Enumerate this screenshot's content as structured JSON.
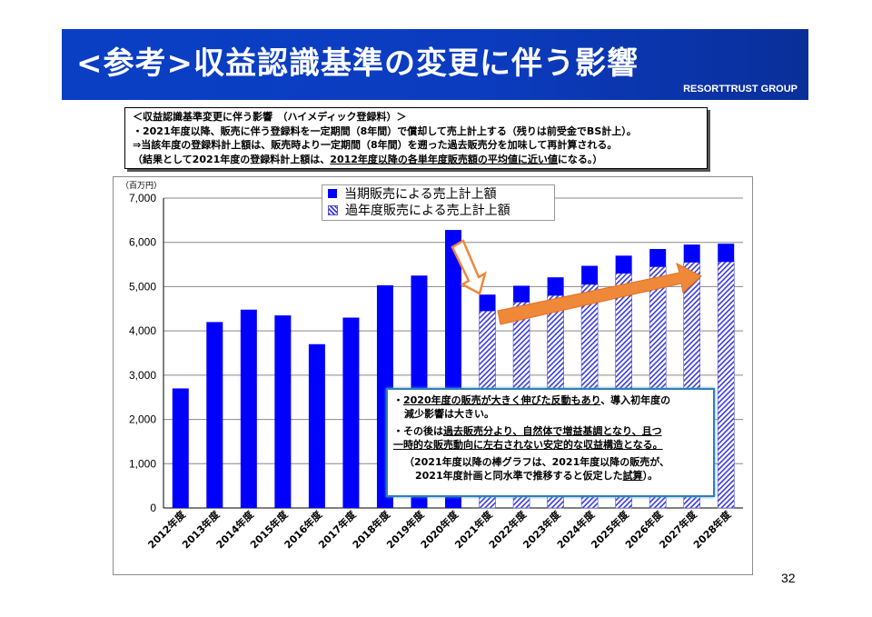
{
  "header": {
    "title": "<参考>収益認識基準の変更に伴う影響",
    "company": "RESORTTRUST GROUP"
  },
  "note": {
    "line1": "＜収益認識基準変更に伴う影響　（ハイメディック登録料）＞",
    "line2": "・2021年度以降、販売に伴う登録料を一定期間（8年間）で償却して売上計上する（残りは前受金でBS計上）。",
    "line3": "⇒当該年度の登録料計上額は、販売時より一定期間（8年間）を遡った過去販売分を加味して再計算される。",
    "line4a": "（結果として2021年度の登録料計上額は、",
    "line4b": "2012年度以降の各単年度販売額の平均値に近い値",
    "line4c": "になる。）"
  },
  "callout": {
    "l1a": "・",
    "l1b": "2020年度の販売が大きく伸びた反動もあり",
    "l1c": "、導入初年度の",
    "l2": "減少影響は大きい。",
    "l3a": "・その後は",
    "l3b": "過去販売分より、自然体で増益基調となり、且つ",
    "l4": "一時的な販売動向に左右されない安定的な収益構造となる。",
    "l5": "（2021年度以降の棒グラフは、2021年度以降の販売が、",
    "l6a": "2021年度計画と同水準で推移すると仮定した",
    "l6b": "試算",
    "l6c": "）。"
  },
  "page_number": "32",
  "colors": {
    "solid": "#0000ff",
    "hatch": "#3a3adf",
    "arrow": "#f0883a",
    "title_bg": "#0a3fc4"
  },
  "chart_data": {
    "type": "bar",
    "unit_label": "（百万円）",
    "ylim": [
      0,
      7000
    ],
    "yticks": [
      "0",
      "1,000",
      "2,000",
      "3,000",
      "4,000",
      "5,000",
      "6,000",
      "7,000"
    ],
    "ytick_values": [
      0,
      1000,
      2000,
      3000,
      4000,
      5000,
      6000,
      7000
    ],
    "grid": true,
    "legend_position": "top-center",
    "categories": [
      "2012年度",
      "2013年度",
      "2014年度",
      "2015年度",
      "2016年度",
      "2017年度",
      "2018年度",
      "2019年度",
      "2020年度",
      "2021年度",
      "2022年度",
      "2023年度",
      "2024年度",
      "2025年度",
      "2026年度",
      "2027年度",
      "2028年度"
    ],
    "series": [
      {
        "name": "過年度販売による売上計上額",
        "pattern": "hatch",
        "values": [
          0,
          0,
          0,
          0,
          0,
          0,
          0,
          0,
          0,
          4450,
          4650,
          4800,
          5050,
          5300,
          5450,
          5550,
          5560
        ]
      },
      {
        "name": "当期販売による売上計上額",
        "pattern": "solid",
        "values": [
          2700,
          4200,
          4480,
          4350,
          3700,
          4300,
          5030,
          5250,
          6280,
          370,
          370,
          410,
          420,
          400,
          400,
          400,
          410
        ]
      }
    ],
    "stacked": true
  }
}
